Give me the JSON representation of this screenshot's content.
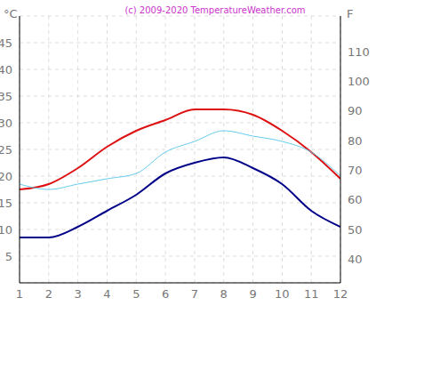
{
  "chart_data": {
    "type": "line",
    "annotation": "(c) 2009-2020 TemperatureWeather.com",
    "ylabel": "°C",
    "y2label": "F",
    "x": [
      1,
      2,
      3,
      4,
      5,
      6,
      7,
      8,
      9,
      10,
      11,
      12
    ],
    "series": [
      {
        "color": "#dd1111",
        "values": [
          17.5,
          18.5,
          21.5,
          25.5,
          28.5,
          30.5,
          32.5,
          32.5,
          31.5,
          28.5,
          24.5,
          19.5
        ]
      },
      {
        "color": "#66ccee",
        "values": [
          18.5,
          17.5,
          18.5,
          19.5,
          20.5,
          24.5,
          26.5,
          28.5,
          27.5,
          26.5,
          24.5,
          20
        ]
      },
      {
        "color": "#000088",
        "values": [
          8.5,
          8.5,
          10.5,
          13.5,
          16.5,
          20.5,
          22.5,
          23.5,
          21.5,
          18.5,
          13.5,
          10.5
        ]
      }
    ],
    "xlim": [
      1,
      12
    ],
    "xticks": [
      1,
      2,
      3,
      4,
      5,
      6,
      7,
      8,
      9,
      10,
      11,
      12
    ],
    "ylim": [
      0,
      50
    ],
    "yticks": [
      5,
      10,
      15,
      20,
      25,
      30,
      35,
      40,
      45
    ],
    "y2lim": [
      32,
      122
    ],
    "y2ticks": [
      40,
      50,
      60,
      70,
      80,
      90,
      100,
      110
    ],
    "grid": true
  }
}
